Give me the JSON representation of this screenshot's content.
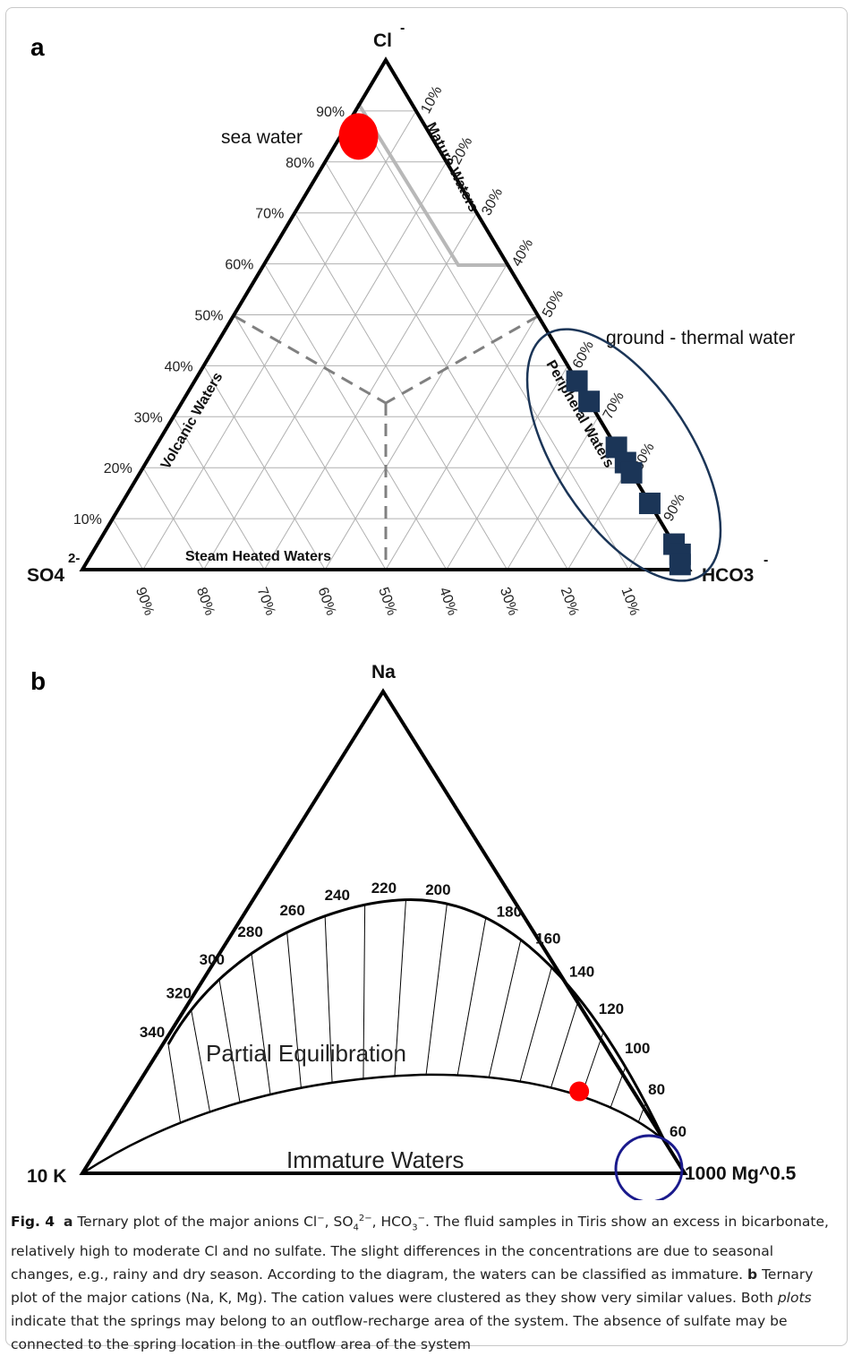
{
  "panel_a": {
    "letter": "a",
    "apex_top": "Cl",
    "apex_top_charge": "-",
    "apex_left": "SO4",
    "apex_left_charge": "2-",
    "apex_right": "HCO3",
    "apex_right_charge": "-",
    "left_ticks": [
      "90%",
      "80%",
      "70%",
      "60%",
      "50%",
      "40%",
      "30%",
      "20%",
      "10%"
    ],
    "right_ticks": [
      "10%",
      "20%",
      "30%",
      "40%",
      "50%",
      "60%",
      "70%",
      "80%",
      "90%"
    ],
    "bottom_ticks": [
      "90%",
      "80%",
      "70%",
      "60%",
      "50%",
      "40%",
      "30%",
      "20%",
      "10%"
    ],
    "zones": {
      "mature": "Mature Waters",
      "volcanic": "Volcanic Waters",
      "steam": "Steam Heated Waters",
      "peripheral": "Peripheral Waters"
    },
    "annotations": {
      "sea_water": "sea water",
      "ground_thermal": "ground - thermal water"
    },
    "colors": {
      "sea_water": "#ff0000",
      "samples": "#1b3557",
      "cluster_ellipse": "#1b3557",
      "mature_boundary": "#b8b8b8",
      "zone_boundary": "#808080"
    }
  },
  "panel_b": {
    "letter": "b",
    "apex_top": "Na",
    "apex_left": "10 K",
    "apex_right": "1000 Mg^0.5",
    "temperature_labels": [
      "340",
      "320",
      "300",
      "280",
      "260",
      "240",
      "220",
      "200",
      "180",
      "160",
      "140",
      "120",
      "100",
      "80",
      "60"
    ],
    "regions": {
      "partial": "Partial Equilibration",
      "immature": "Immature Waters"
    },
    "colors": {
      "sample": "#ff0000",
      "cluster_circle": "#1a1a8c"
    }
  },
  "caption": {
    "fig_label": "Fig. 4",
    "a_label": "a",
    "a_text_1": "Ternary plot of the major anions Cl",
    "a_text_2": ". The fluid samples in Tiris show an excess in bicarbonate, relatively high to moderate Cl and no sulfate. The slight differences in the concentrations are due to seasonal changes, e.g., rainy and dry season. According to the diagram, the waters can be classified as immature.",
    "b_label": "b",
    "b_text_1": "Ternary plot of the major cations (Na, K, Mg). The cation values were clustered as they show very similar values. Both",
    "b_italic": "plots",
    "b_text_2": "indicate that the springs may belong to an outflow-recharge area of the system. The absence of sulfate may be connected to the spring location in the outflow area of the system"
  },
  "chart_data": [
    {
      "type": "scatter",
      "title": "",
      "axes": [
        "Cl-",
        "SO4 2-",
        "HCO3-"
      ],
      "units": "%",
      "series": [
        {
          "name": "sea water",
          "points": [
            {
              "Cl": 85,
              "SO4": 12,
              "HCO3": 3
            }
          ]
        },
        {
          "name": "ground - thermal water",
          "points": [
            {
              "Cl": 37,
              "SO4": 0,
              "HCO3": 63
            },
            {
              "Cl": 33,
              "SO4": 0,
              "HCO3": 67
            },
            {
              "Cl": 24,
              "SO4": 0,
              "HCO3": 76
            },
            {
              "Cl": 21,
              "SO4": 0,
              "HCO3": 79
            },
            {
              "Cl": 19,
              "SO4": 0,
              "HCO3": 81
            },
            {
              "Cl": 13,
              "SO4": 0,
              "HCO3": 87
            },
            {
              "Cl": 5,
              "SO4": 0,
              "HCO3": 95
            },
            {
              "Cl": 3,
              "SO4": 0,
              "HCO3": 97
            },
            {
              "Cl": 1,
              "SO4": 1,
              "HCO3": 98
            }
          ]
        }
      ]
    },
    {
      "type": "scatter",
      "title": "",
      "axes": [
        "Na",
        "10 K",
        "1000 Mg^0.5"
      ],
      "units": "%",
      "series": [
        {
          "name": "",
          "points": [
            {
              "Na": 17,
              "K": 9,
              "Mg": 74
            }
          ]
        }
      ]
    }
  ]
}
